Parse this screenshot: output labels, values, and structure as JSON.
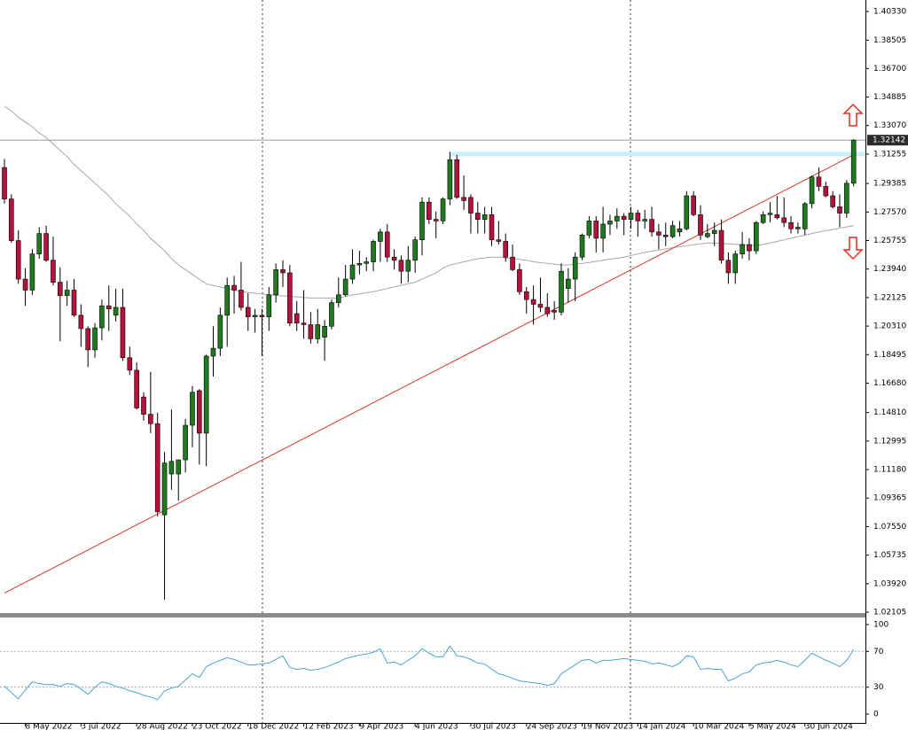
{
  "chart_data": {
    "type": "candlestick",
    "categories": [
      null,
      null,
      null,
      "8 May 2022",
      null,
      null,
      null,
      null,
      null,
      null,
      null,
      "3 Jul 2022",
      null,
      null,
      null,
      null,
      null,
      null,
      null,
      "28 Aug 2022",
      null,
      null,
      null,
      null,
      null,
      null,
      null,
      "23 Oct 2022",
      null,
      null,
      null,
      null,
      null,
      null,
      null,
      "18 Dec 2022",
      null,
      null,
      null,
      null,
      null,
      null,
      null,
      "12 Feb 2023",
      null,
      null,
      null,
      null,
      null,
      null,
      null,
      "9 Apr 2023",
      null,
      null,
      null,
      null,
      null,
      null,
      null,
      "4 Jun 2023",
      null,
      null,
      null,
      null,
      null,
      null,
      null,
      "30 Jul 2023",
      null,
      null,
      null,
      null,
      null,
      null,
      null,
      "24 Sep 2023",
      null,
      null,
      null,
      null,
      null,
      null,
      null,
      "19 Nov 2023",
      null,
      null,
      null,
      null,
      null,
      null,
      null,
      "14 Jan 2024",
      null,
      null,
      null,
      null,
      null,
      null,
      null,
      "10 Mar 2024",
      null,
      null,
      null,
      null,
      null,
      null,
      null,
      "5 May 2024",
      null,
      null,
      null,
      null,
      null,
      null,
      null,
      "30 Jun 2024",
      null,
      null,
      null,
      null,
      null,
      null,
      null
    ],
    "ohlc": [
      [
        1.304,
        1.3095,
        1.281,
        1.284
      ],
      [
        1.284,
        1.287,
        1.256,
        1.2575
      ],
      [
        1.2575,
        1.264,
        1.23,
        1.233
      ],
      [
        1.233,
        1.24,
        1.216,
        1.226
      ],
      [
        1.226,
        1.252,
        1.223,
        1.249
      ],
      [
        1.249,
        1.266,
        1.246,
        1.262
      ],
      [
        1.262,
        1.267,
        1.244,
        1.245
      ],
      [
        1.245,
        1.26,
        1.229,
        1.231
      ],
      [
        1.231,
        1.2405,
        1.1935,
        1.2225
      ],
      [
        1.2225,
        1.232,
        1.216,
        1.226
      ],
      [
        1.226,
        1.233,
        1.209,
        1.21
      ],
      [
        1.21,
        1.217,
        1.19,
        1.2015
      ],
      [
        1.2015,
        1.203,
        1.177,
        1.188
      ],
      [
        1.188,
        1.205,
        1.183,
        1.202
      ],
      [
        1.202,
        1.22,
        1.194,
        1.216
      ],
      [
        1.216,
        1.229,
        1.2,
        1.214
      ],
      [
        1.21,
        1.227,
        1.206,
        1.215
      ],
      [
        1.215,
        1.227,
        1.181,
        1.183
      ],
      [
        1.183,
        1.19,
        1.172,
        1.175
      ],
      [
        1.175,
        1.18,
        1.15,
        1.151
      ],
      [
        1.158,
        1.161,
        1.143,
        1.147
      ],
      [
        1.147,
        1.174,
        1.135,
        1.141
      ],
      [
        1.141,
        1.148,
        1.082,
        1.085
      ],
      [
        1.083,
        1.123,
        1.029,
        1.116
      ],
      [
        1.109,
        1.15,
        1.099,
        1.117
      ],
      [
        1.109,
        1.118,
        1.092,
        1.118
      ],
      [
        1.118,
        1.144,
        1.11,
        1.14
      ],
      [
        1.14,
        1.165,
        1.126,
        1.161
      ],
      [
        1.162,
        1.163,
        1.115,
        1.135
      ],
      [
        1.135,
        1.185,
        1.114,
        1.184
      ],
      [
        1.184,
        1.203,
        1.171,
        1.189
      ],
      [
        1.189,
        1.215,
        1.184,
        1.21
      ],
      [
        1.21,
        1.234,
        1.19,
        1.229
      ],
      [
        1.229,
        1.235,
        1.211,
        1.226
      ],
      [
        1.226,
        1.244,
        1.213,
        1.215
      ],
      [
        1.215,
        1.224,
        1.2,
        1.209
      ],
      [
        1.209,
        1.214,
        1.199,
        1.21
      ],
      [
        1.21,
        1.214,
        1.184,
        1.209
      ],
      [
        1.209,
        1.228,
        1.2,
        1.223
      ],
      [
        1.223,
        1.243,
        1.218,
        1.239
      ],
      [
        1.239,
        1.245,
        1.228,
        1.237
      ],
      [
        1.237,
        1.242,
        1.203,
        1.205
      ],
      [
        1.211,
        1.219,
        1.2,
        1.205
      ],
      [
        1.205,
        1.226,
        1.195,
        1.204
      ],
      [
        1.204,
        1.212,
        1.192,
        1.195
      ],
      [
        1.195,
        1.214,
        1.192,
        1.204
      ],
      [
        1.196,
        1.207,
        1.181,
        1.203
      ],
      [
        1.203,
        1.22,
        1.201,
        1.218
      ],
      [
        1.218,
        1.234,
        1.215,
        1.223
      ],
      [
        1.223,
        1.242,
        1.222,
        1.233
      ],
      [
        1.233,
        1.252,
        1.23,
        1.242
      ],
      [
        1.242,
        1.251,
        1.236,
        1.243
      ],
      [
        1.243,
        1.247,
        1.238,
        1.244
      ],
      [
        1.244,
        1.258,
        1.238,
        1.257
      ],
      [
        1.257,
        1.265,
        1.244,
        1.263
      ],
      [
        1.263,
        1.268,
        1.244,
        1.247
      ],
      [
        1.247,
        1.252,
        1.239,
        1.245
      ],
      [
        1.245,
        1.248,
        1.23,
        1.238
      ],
      [
        1.238,
        1.254,
        1.231,
        1.245
      ],
      [
        1.245,
        1.26,
        1.237,
        1.258
      ],
      [
        1.258,
        1.285,
        1.248,
        1.282
      ],
      [
        1.282,
        1.285,
        1.268,
        1.271
      ],
      [
        1.271,
        1.276,
        1.259,
        1.27
      ],
      [
        1.27,
        1.285,
        1.268,
        1.284
      ],
      [
        1.284,
        1.314,
        1.28,
        1.309
      ],
      [
        1.309,
        1.312,
        1.284,
        1.285
      ],
      [
        1.285,
        1.299,
        1.277,
        1.283
      ],
      [
        1.285,
        1.287,
        1.262,
        1.275
      ],
      [
        1.275,
        1.282,
        1.262,
        1.271
      ],
      [
        1.271,
        1.279,
        1.262,
        1.274
      ],
      [
        1.274,
        1.279,
        1.254,
        1.258
      ],
      [
        1.258,
        1.27,
        1.255,
        1.257
      ],
      [
        1.257,
        1.262,
        1.244,
        1.247
      ],
      [
        1.247,
        1.255,
        1.238,
        1.239
      ],
      [
        1.239,
        1.243,
        1.223,
        1.225
      ],
      [
        1.225,
        1.228,
        1.211,
        1.22
      ],
      [
        1.22,
        1.229,
        1.204,
        1.217
      ],
      [
        1.217,
        1.234,
        1.212,
        1.215
      ],
      [
        1.215,
        1.224,
        1.209,
        1.211
      ],
      [
        1.213,
        1.219,
        1.207,
        1.212
      ],
      [
        1.212,
        1.243,
        1.21,
        1.238
      ],
      [
        1.227,
        1.24,
        1.218,
        1.233
      ],
      [
        1.233,
        1.25,
        1.219,
        1.247
      ],
      [
        1.247,
        1.262,
        1.245,
        1.261
      ],
      [
        1.261,
        1.273,
        1.259,
        1.27
      ],
      [
        1.27,
        1.273,
        1.25,
        1.259
      ],
      [
        1.259,
        1.279,
        1.25,
        1.268
      ],
      [
        1.268,
        1.274,
        1.261,
        1.27
      ],
      [
        1.27,
        1.278,
        1.265,
        1.273
      ],
      [
        1.273,
        1.275,
        1.261,
        1.271
      ],
      [
        1.271,
        1.279,
        1.265,
        1.275
      ],
      [
        1.275,
        1.277,
        1.26,
        1.27
      ],
      [
        1.27,
        1.277,
        1.265,
        1.271
      ],
      [
        1.271,
        1.279,
        1.26,
        1.263
      ],
      [
        1.263,
        1.268,
        1.252,
        1.261
      ],
      [
        1.261,
        1.269,
        1.254,
        1.26
      ],
      [
        1.26,
        1.27,
        1.259,
        1.267
      ],
      [
        1.263,
        1.27,
        1.26,
        1.265
      ],
      [
        1.265,
        1.289,
        1.264,
        1.286
      ],
      [
        1.286,
        1.289,
        1.273,
        1.274
      ],
      [
        1.274,
        1.28,
        1.258,
        1.261
      ],
      [
        1.26,
        1.268,
        1.259,
        1.262
      ],
      [
        1.262,
        1.269,
        1.254,
        1.264
      ],
      [
        1.264,
        1.271,
        1.243,
        1.245
      ],
      [
        1.245,
        1.25,
        1.23,
        1.237
      ],
      [
        1.237,
        1.251,
        1.23,
        1.249
      ],
      [
        1.249,
        1.263,
        1.246,
        1.255
      ],
      [
        1.255,
        1.259,
        1.245,
        1.251
      ],
      [
        1.251,
        1.27,
        1.249,
        1.269
      ],
      [
        1.269,
        1.276,
        1.268,
        1.274
      ],
      [
        1.274,
        1.282,
        1.269,
        1.275
      ],
      [
        1.274,
        1.286,
        1.271,
        1.272
      ],
      [
        1.272,
        1.285,
        1.266,
        1.269
      ],
      [
        1.269,
        1.273,
        1.262,
        1.265
      ],
      [
        1.265,
        1.269,
        1.262,
        1.266
      ],
      [
        1.265,
        1.282,
        1.261,
        1.281
      ],
      [
        1.281,
        1.299,
        1.278,
        1.298
      ],
      [
        1.298,
        1.304,
        1.289,
        1.292
      ],
      [
        1.292,
        1.295,
        1.285,
        1.286
      ],
      [
        1.286,
        1.289,
        1.278,
        1.279
      ],
      [
        1.279,
        1.287,
        1.266,
        1.275
      ],
      [
        1.275,
        1.296,
        1.272,
        1.294
      ],
      [
        1.294,
        1.322,
        1.292,
        1.32142
      ]
    ],
    "up_color": "#1f7a1f",
    "down_color": "#b3123a",
    "moving_average": {
      "color": "#a8a8a8",
      "values": [
        1.343,
        1.34,
        1.336,
        1.333,
        1.33,
        1.326,
        1.323,
        1.319,
        1.315,
        1.311,
        1.306,
        1.302,
        1.298,
        1.294,
        1.29,
        1.286,
        1.281,
        1.277,
        1.273,
        1.268,
        1.264,
        1.259,
        1.255,
        1.251,
        1.246,
        1.242,
        1.239,
        1.236,
        1.233,
        1.23,
        1.229,
        1.228,
        1.227,
        1.226,
        1.225,
        1.2245,
        1.224,
        1.2235,
        1.223,
        1.2227,
        1.2223,
        1.222,
        1.2217,
        1.2213,
        1.221,
        1.221,
        1.221,
        1.221,
        1.221,
        1.222,
        1.223,
        1.2235,
        1.2243,
        1.225,
        1.226,
        1.227,
        1.228,
        1.229,
        1.23,
        1.231,
        1.233,
        1.235,
        1.237,
        1.24,
        1.242,
        1.243,
        1.244,
        1.245,
        1.246,
        1.2465,
        1.247,
        1.247,
        1.2465,
        1.246,
        1.2455,
        1.245,
        1.244,
        1.2435,
        1.243,
        1.2425,
        1.242,
        1.242,
        1.2425,
        1.243,
        1.2436,
        1.2443,
        1.245,
        1.2457,
        1.2463,
        1.247,
        1.248,
        1.249,
        1.25,
        1.2508,
        1.2515,
        1.2523,
        1.253,
        1.2536,
        1.2542,
        1.2548,
        1.2554,
        1.256,
        1.256,
        1.2557,
        1.2554,
        1.2551,
        1.2548,
        1.2545,
        1.2545,
        1.255,
        1.256,
        1.257,
        1.258,
        1.259,
        1.26,
        1.261,
        1.262,
        1.263,
        1.2638,
        1.2646,
        1.2654,
        1.2662,
        1.267
      ]
    },
    "trendline": {
      "color": "#d03a2a",
      "from": [
        0,
        1.0332
      ],
      "to": [
        122,
        1.3121
      ]
    },
    "resistance": {
      "color": "#c8f0fa",
      "value": 1.3126,
      "from": 64
    },
    "last_price": 1.32142,
    "ylim": [
      1.0205,
      1.4106
    ],
    "yticks": [
      {
        "value": 1.4033,
        "label": "1.40330"
      },
      1.38505,
      {
        "value": 1.367,
        "label": "1.36700"
      },
      1.34885,
      {
        "value": 1.3307,
        "label": "1.33070"
      },
      1.31255,
      1.29385,
      {
        "value": 1.2757,
        "label": "1.27570"
      },
      1.25755,
      {
        "value": 1.2394,
        "label": "1.23940"
      },
      1.22125,
      {
        "value": 1.2031,
        "label": "1.20310"
      },
      1.18495,
      {
        "value": 1.1668,
        "label": "1.16680"
      },
      {
        "value": 1.1481,
        "label": "1.14810"
      },
      1.12995,
      {
        "value": 1.1118,
        "label": "1.11180"
      },
      1.09365,
      {
        "value": 1.0755,
        "label": "1.07550"
      },
      1.05735,
      {
        "value": 1.0392,
        "label": "1.03920"
      },
      1.02105
    ],
    "rsi": {
      "type": "line",
      "color": "#4aa3d9",
      "ylim": [
        -9.9,
        106.9
      ],
      "yticks": [
        100,
        70,
        30,
        0
      ],
      "levels": [
        70,
        30
      ],
      "values": [
        31,
        24,
        17,
        27,
        36,
        34,
        33,
        33,
        31,
        34,
        33,
        28,
        22,
        30,
        36,
        34,
        31,
        29,
        26,
        24,
        21,
        19,
        16,
        26,
        29,
        31,
        38,
        45,
        41,
        53,
        57,
        60,
        63,
        61,
        58,
        55,
        55,
        56,
        57,
        61,
        65,
        52,
        50,
        51,
        49,
        50,
        52,
        55,
        58,
        62,
        64,
        66,
        67,
        69,
        73,
        57,
        58,
        55,
        60,
        65,
        73,
        68,
        64,
        64,
        76,
        65,
        64,
        61,
        57,
        56,
        50,
        45,
        43,
        40,
        37,
        36,
        35,
        34,
        32,
        34,
        45,
        50,
        55,
        60,
        61,
        57,
        60,
        60,
        61,
        62,
        61,
        60,
        59,
        56,
        57,
        55,
        53,
        57,
        65,
        64,
        50,
        51,
        50,
        50,
        37,
        40,
        45,
        47,
        55,
        57,
        58,
        60,
        58,
        55,
        53,
        60,
        68,
        64,
        60,
        57,
        53,
        60,
        72
      ]
    }
  }
}
